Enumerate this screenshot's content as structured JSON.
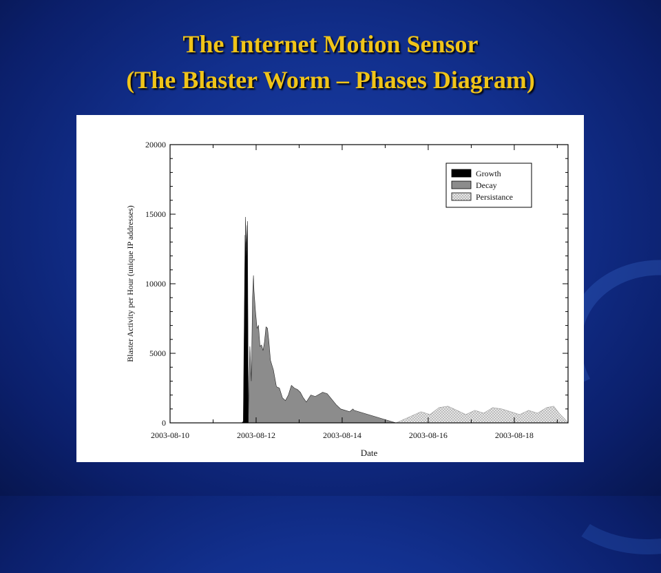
{
  "slide": {
    "title_line1": "The Internet Motion Sensor",
    "title_line2": "(The Blaster Worm – Phases Diagram)"
  },
  "chart_data": {
    "type": "area",
    "xlabel": "Date",
    "ylabel": "Blaster Activity per Hour (unique IP addresses)",
    "ylim": [
      0,
      20000
    ],
    "yticks": [
      0,
      5000,
      10000,
      15000,
      20000
    ],
    "xlim_days": [
      "2003-08-10",
      "2003-08-19 06:00"
    ],
    "xtick_labels": [
      "2003-08-10",
      "2003-08-12",
      "2003-08-14",
      "2003-08-16",
      "2003-08-18"
    ],
    "legend_position": "top-right",
    "grid": false,
    "series": [
      {
        "name": "Growth",
        "color": "#000000",
        "x": [
          "2003-08-11 16:00",
          "2003-08-11 16:50",
          "2003-08-11 17:50",
          "2003-08-11 18:30",
          "2003-08-11 19:10",
          "2003-08-11 19:40"
        ],
        "values": [
          0,
          100,
          13500,
          12000,
          14500,
          0
        ]
      },
      {
        "name": "Decay",
        "color": "#8c8c8c",
        "x": [
          "2003-08-11 17:50",
          "2003-08-11 18:00",
          "2003-08-11 18:30",
          "2003-08-11 19:00",
          "2003-08-11 19:40",
          "2003-08-11 20:30",
          "2003-08-11 21:20",
          "2003-08-11 22:00",
          "2003-08-11 22:30",
          "2003-08-11 22:50",
          "2003-08-11 23:40",
          "2003-08-12 00:30",
          "2003-08-12 01:20",
          "2003-08-12 02:10",
          "2003-08-12 03:00",
          "2003-08-12 03:50",
          "2003-08-12 04:40",
          "2003-08-12 05:30",
          "2003-08-12 06:20",
          "2003-08-12 07:10",
          "2003-08-12 08:00",
          "2003-08-12 09:40",
          "2003-08-12 11:20",
          "2003-08-12 13:00",
          "2003-08-12 14:40",
          "2003-08-12 16:20",
          "2003-08-12 18:00",
          "2003-08-12 19:40",
          "2003-08-12 21:20",
          "2003-08-12 23:00",
          "2003-08-13 00:40",
          "2003-08-13 02:20",
          "2003-08-13 04:00",
          "2003-08-13 06:30",
          "2003-08-13 09:00",
          "2003-08-13 13:10",
          "2003-08-13 15:40",
          "2003-08-13 18:10",
          "2003-08-13 20:40",
          "2003-08-13 23:10",
          "2003-08-14 01:40",
          "2003-08-14 04:10",
          "2003-08-14 06:00",
          "2003-08-14 06:40",
          "2003-08-15 06:00"
        ],
        "values": [
          0,
          14800,
          12500,
          14200,
          600,
          5500,
          3000,
          9000,
          10600,
          9500,
          8000,
          6800,
          7000,
          5500,
          5600,
          5200,
          5800,
          6900,
          6800,
          5800,
          4500,
          3800,
          2600,
          2500,
          1800,
          1600,
          2000,
          2700,
          2500,
          2400,
          2200,
          1800,
          1500,
          2000,
          1900,
          2200,
          2100,
          1700,
          1300,
          1000,
          900,
          800,
          1000,
          900,
          0
        ]
      },
      {
        "name": "Persistance",
        "color": "#d4d4d4",
        "x": [
          "2003-08-15 06:00",
          "2003-08-15 13:00",
          "2003-08-15 20:00",
          "2003-08-16 01:00",
          "2003-08-16 06:00",
          "2003-08-16 11:00",
          "2003-08-16 16:00",
          "2003-08-16 21:00",
          "2003-08-17 02:00",
          "2003-08-17 07:00",
          "2003-08-17 12:00",
          "2003-08-17 17:00",
          "2003-08-17 22:00",
          "2003-08-18 03:00",
          "2003-08-18 08:00",
          "2003-08-18 13:00",
          "2003-08-18 18:00",
          "2003-08-18 22:00",
          "2003-08-19 01:00",
          "2003-08-19 04:00",
          "2003-08-19 06:00"
        ],
        "values": [
          0,
          400,
          800,
          600,
          1100,
          1200,
          900,
          600,
          900,
          700,
          1100,
          1000,
          800,
          600,
          900,
          700,
          1100,
          1200,
          700,
          300,
          0
        ]
      }
    ]
  }
}
